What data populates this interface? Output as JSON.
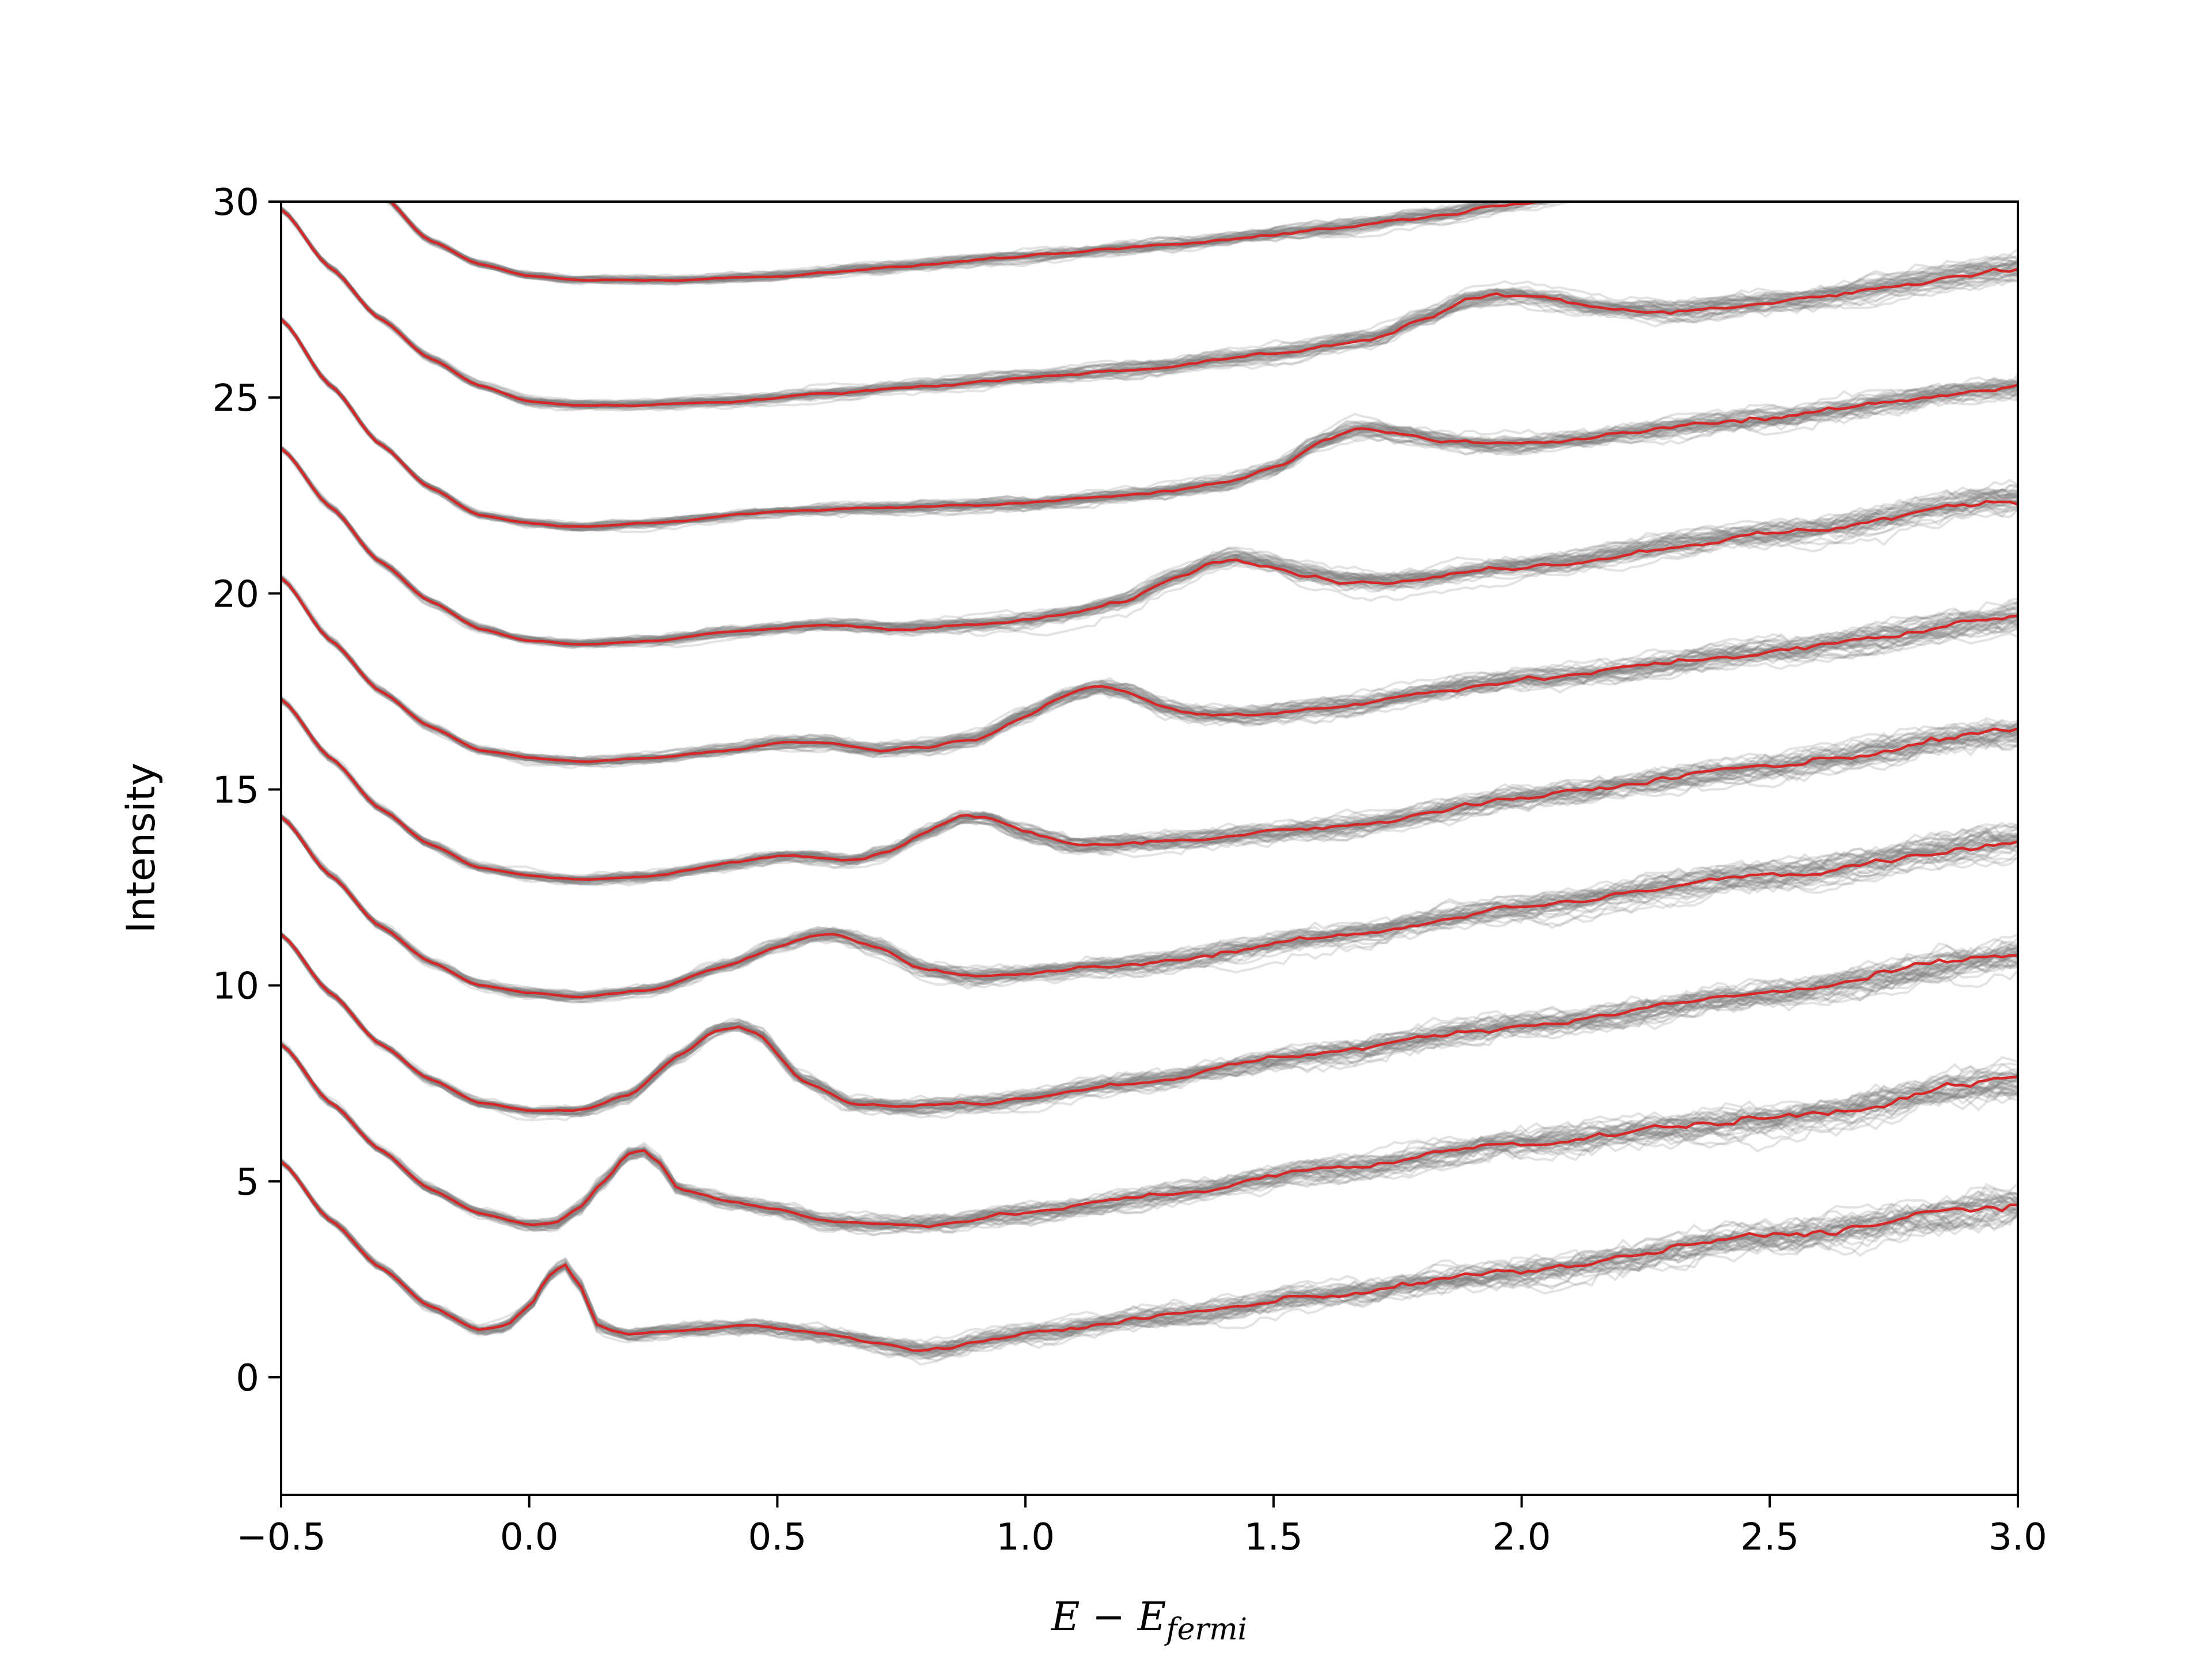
{
  "chart_data": {
    "type": "line",
    "title": "",
    "xlabel": {
      "main": "E − E",
      "subscript": "fermi"
    },
    "ylabel": "Intensity",
    "xlim": [
      -0.5,
      3.0
    ],
    "ylim": [
      -3,
      30
    ],
    "xticks": [
      -0.5,
      0.0,
      0.5,
      1.0,
      1.5,
      2.0,
      2.5,
      3.0
    ],
    "xtick_labels": [
      "−0.5",
      "0.0",
      "0.5",
      "1.0",
      "1.5",
      "2.0",
      "2.5",
      "3.0"
    ],
    "yticks": [
      0,
      5,
      10,
      15,
      20,
      25,
      30
    ],
    "ytick_labels": [
      "0",
      "5",
      "10",
      "15",
      "20",
      "25",
      "30"
    ],
    "grid": false,
    "legend": "none",
    "colors": {
      "mean": "#d62728",
      "samples": "#7f7f7f"
    },
    "samples_per_curve": 40,
    "series": [
      {
        "offset": 0,
        "x": [
          -0.5,
          -0.4,
          -0.3,
          -0.2,
          -0.1,
          -0.05,
          0.0,
          0.04,
          0.07,
          0.1,
          0.14,
          0.2,
          0.3,
          0.45,
          0.6,
          0.8,
          1.0,
          1.3,
          1.6,
          2.0,
          2.5,
          3.0
        ],
        "y": [
          5.5,
          4.0,
          2.8,
          1.8,
          1.2,
          1.3,
          1.8,
          2.6,
          2.9,
          2.4,
          1.3,
          1.1,
          1.2,
          1.3,
          1.1,
          0.7,
          1.1,
          1.6,
          2.1,
          2.7,
          3.6,
          4.4
        ]
      },
      {
        "offset": 3,
        "x": [
          -0.5,
          -0.4,
          -0.3,
          -0.2,
          -0.1,
          0.0,
          0.05,
          0.1,
          0.15,
          0.2,
          0.23,
          0.26,
          0.3,
          0.4,
          0.5,
          0.6,
          0.7,
          0.8,
          1.0,
          1.3,
          1.6,
          2.0,
          2.5,
          3.0
        ],
        "y": [
          8.5,
          7.0,
          5.8,
          4.8,
          4.2,
          3.9,
          3.9,
          4.3,
          5.0,
          5.7,
          5.8,
          5.5,
          4.8,
          4.5,
          4.3,
          4.0,
          3.9,
          3.9,
          4.2,
          4.7,
          5.3,
          6.0,
          6.6,
          7.6
        ]
      },
      {
        "offset": 6,
        "x": [
          -0.5,
          -0.4,
          -0.3,
          -0.2,
          -0.1,
          0.0,
          0.1,
          0.2,
          0.3,
          0.38,
          0.42,
          0.46,
          0.55,
          0.65,
          0.75,
          0.9,
          1.2,
          1.6,
          2.0,
          2.5,
          3.0
        ],
        "y": [
          11.3,
          9.8,
          8.5,
          7.6,
          7.0,
          6.8,
          6.8,
          7.2,
          8.2,
          8.9,
          9.0,
          8.8,
          7.6,
          7.0,
          6.9,
          7.0,
          7.5,
          8.3,
          9.0,
          9.8,
          10.8
        ]
      },
      {
        "offset": 9,
        "x": [
          -0.5,
          -0.4,
          -0.3,
          -0.2,
          -0.1,
          0.0,
          0.1,
          0.25,
          0.4,
          0.5,
          0.58,
          0.62,
          0.7,
          0.8,
          0.9,
          1.2,
          1.6,
          2.0,
          2.5,
          3.0
        ],
        "y": [
          14.3,
          12.8,
          11.5,
          10.6,
          10.0,
          9.8,
          9.7,
          9.9,
          10.5,
          11.0,
          11.3,
          11.3,
          11.0,
          10.4,
          10.2,
          10.5,
          11.2,
          12.0,
          12.8,
          13.7
        ]
      },
      {
        "offset": 12,
        "x": [
          -0.5,
          -0.4,
          -0.3,
          -0.2,
          -0.1,
          0.0,
          0.1,
          0.25,
          0.4,
          0.5,
          0.55,
          0.65,
          0.72,
          0.8,
          0.87,
          0.92,
          1.0,
          1.1,
          1.3,
          1.6,
          2.0,
          2.5,
          3.0
        ],
        "y": [
          17.3,
          15.8,
          14.5,
          13.6,
          13.0,
          12.8,
          12.7,
          12.8,
          13.1,
          13.3,
          13.3,
          13.2,
          13.4,
          13.9,
          14.3,
          14.3,
          13.9,
          13.6,
          13.7,
          14.0,
          14.8,
          15.6,
          16.5
        ]
      },
      {
        "offset": 15,
        "x": [
          -0.5,
          -0.4,
          -0.3,
          -0.2,
          -0.1,
          0.0,
          0.1,
          0.25,
          0.4,
          0.5,
          0.6,
          0.7,
          0.8,
          0.9,
          1.0,
          1.08,
          1.15,
          1.2,
          1.28,
          1.35,
          1.45,
          1.6,
          2.0,
          2.5,
          3.0
        ],
        "y": [
          20.4,
          18.8,
          17.5,
          16.6,
          16.0,
          15.8,
          15.7,
          15.8,
          16.0,
          16.2,
          16.2,
          16.0,
          16.1,
          16.3,
          16.9,
          17.4,
          17.6,
          17.5,
          17.1,
          16.9,
          16.9,
          17.1,
          17.8,
          18.5,
          19.4
        ]
      },
      {
        "offset": 18,
        "x": [
          -0.5,
          -0.4,
          -0.3,
          -0.2,
          -0.1,
          0.0,
          0.1,
          0.25,
          0.4,
          0.5,
          0.6,
          0.75,
          0.9,
          1.0,
          1.1,
          1.2,
          1.3,
          1.38,
          1.42,
          1.48,
          1.56,
          1.65,
          1.75,
          2.0,
          2.5,
          3.0
        ],
        "y": [
          23.7,
          22.2,
          20.8,
          19.8,
          19.1,
          18.8,
          18.7,
          18.8,
          19.0,
          19.1,
          19.2,
          19.1,
          19.2,
          19.3,
          19.5,
          19.8,
          20.4,
          20.8,
          20.9,
          20.8,
          20.5,
          20.3,
          20.3,
          20.7,
          21.5,
          22.4
        ]
      },
      {
        "offset": 21,
        "x": [
          -0.5,
          -0.4,
          -0.3,
          -0.2,
          -0.1,
          0.0,
          0.1,
          0.25,
          0.5,
          0.75,
          1.0,
          1.2,
          1.4,
          1.5,
          1.6,
          1.66,
          1.7,
          1.76,
          1.85,
          1.95,
          2.0,
          2.5,
          3.0
        ],
        "y": [
          27.0,
          25.3,
          23.8,
          22.7,
          22.0,
          21.8,
          21.7,
          21.8,
          22.1,
          22.2,
          22.3,
          22.5,
          22.8,
          23.2,
          23.9,
          24.2,
          24.2,
          24.1,
          23.9,
          23.8,
          23.8,
          24.5,
          25.3
        ]
      },
      {
        "offset": 24,
        "x": [
          -0.5,
          -0.4,
          -0.3,
          -0.2,
          -0.1,
          0.0,
          0.1,
          0.2,
          0.4,
          0.6,
          0.8,
          1.0,
          1.2,
          1.5,
          1.7,
          1.8,
          1.9,
          1.95,
          2.0,
          2.06,
          2.15,
          2.3,
          2.5,
          3.0
        ],
        "y": [
          29.8,
          28.3,
          27.0,
          26.0,
          25.3,
          24.9,
          24.8,
          24.8,
          24.9,
          25.1,
          25.3,
          25.5,
          25.7,
          26.1,
          26.5,
          27.0,
          27.5,
          27.6,
          27.6,
          27.5,
          27.3,
          27.2,
          27.4,
          28.3
        ]
      },
      {
        "offset": 27,
        "x": [
          -0.5,
          -0.4,
          -0.3,
          -0.2,
          -0.1,
          0.0,
          0.1,
          0.3,
          0.5,
          0.7,
          1.0,
          1.3,
          1.6,
          1.8,
          2.0,
          2.2,
          2.5,
          3.0
        ],
        "y": [
          33.5,
          31.8,
          30.2,
          29.0,
          28.4,
          28.1,
          28.0,
          28.0,
          28.1,
          28.3,
          28.6,
          28.9,
          29.3,
          29.6,
          30.0,
          30.5,
          31.3,
          32.6
        ]
      }
    ]
  }
}
